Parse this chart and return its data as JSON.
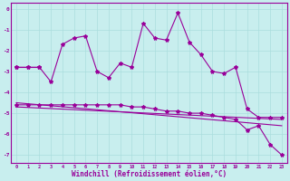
{
  "xlabel": "Windchill (Refroidissement éolien,°C)",
  "background_color": "#c8eeee",
  "line_color": "#990099",
  "grid_color": "#aadddd",
  "x_ticks": [
    0,
    1,
    2,
    3,
    4,
    5,
    6,
    7,
    8,
    9,
    10,
    11,
    12,
    13,
    14,
    15,
    16,
    17,
    18,
    19,
    20,
    21,
    22,
    23
  ],
  "y_ticks": [
    0,
    -1,
    -2,
    -3,
    -4,
    -5,
    -6,
    -7
  ],
  "ylim": [
    -7.4,
    0.3
  ],
  "xlim": [
    -0.5,
    23.5
  ],
  "series1_x": [
    0,
    1,
    2
  ],
  "series1_y": [
    -2.8,
    -2.8,
    -2.8
  ],
  "series2_x": [
    0,
    1,
    2,
    3,
    4,
    5,
    6,
    7,
    8,
    9,
    10,
    11,
    12,
    13,
    14,
    15,
    16,
    17,
    18,
    19,
    20,
    21,
    22,
    23
  ],
  "series2_y": [
    -2.8,
    -2.8,
    -2.8,
    -3.5,
    -1.7,
    -1.4,
    -1.3,
    -3.0,
    -3.3,
    -2.6,
    -2.8,
    -0.7,
    -1.4,
    -1.5,
    -0.2,
    -1.6,
    -2.2,
    -3.0,
    -3.1,
    -2.8,
    -4.8,
    -5.2,
    -5.2,
    -5.2
  ],
  "series3_x": [
    0,
    23
  ],
  "series3_y": [
    -4.5,
    -5.6
  ],
  "series4_x": [
    0,
    23
  ],
  "series4_y": [
    -4.7,
    -5.3
  ],
  "series5_x": [
    0,
    1,
    2,
    3,
    4,
    5,
    6,
    7,
    8,
    9,
    10,
    11,
    12,
    13,
    14,
    15,
    16,
    17,
    18,
    19,
    20,
    21,
    22,
    23
  ],
  "series5_y": [
    -4.6,
    -4.6,
    -4.6,
    -4.6,
    -4.6,
    -4.6,
    -4.6,
    -4.6,
    -4.6,
    -4.6,
    -4.7,
    -4.7,
    -4.8,
    -4.9,
    -4.9,
    -5.0,
    -5.0,
    -5.1,
    -5.2,
    -5.3,
    -5.8,
    -5.6,
    -6.5,
    -7.0
  ]
}
